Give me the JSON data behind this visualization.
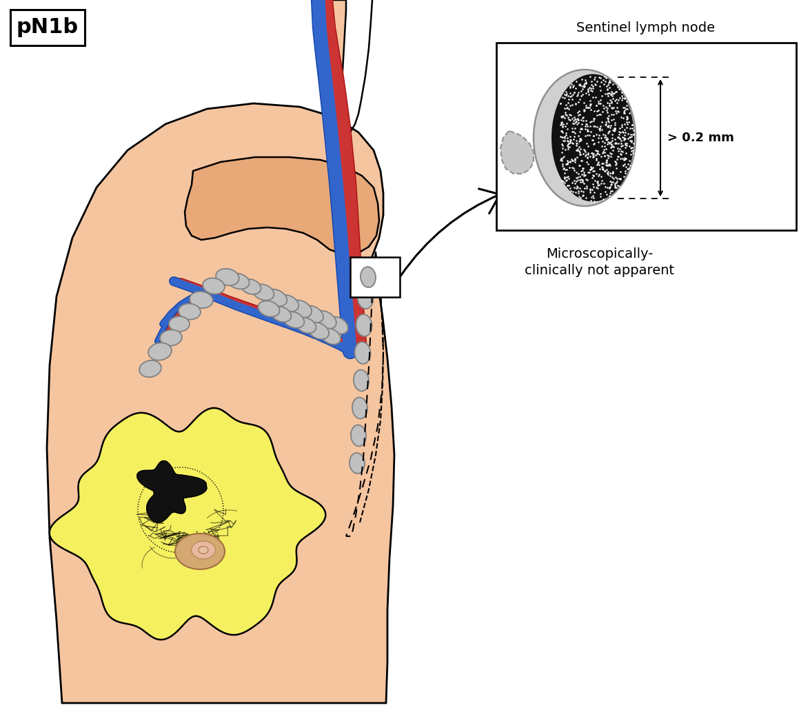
{
  "background_color": "#ffffff",
  "skin_color": "#f5c5a0",
  "skin_dark": "#e8a878",
  "lymph_node_fill": "#c0c0c0",
  "lymph_node_edge": "#808080",
  "breast_color": "#f5f060",
  "tumor_color": "#111111",
  "nipple_outer": "#d4a870",
  "nipple_inner": "#e8b8a0",
  "vein_color": "#3366cc",
  "vein_dark": "#1144aa",
  "artery_color": "#cc3333",
  "artery_dark": "#aa1111",
  "title_label": "pN1b",
  "sentinel_title": "Sentinel lymph node",
  "measurement_label": "> 0.2 mm",
  "micro_label1": "Microscopically-",
  "micro_label2": "clinically not apparent"
}
